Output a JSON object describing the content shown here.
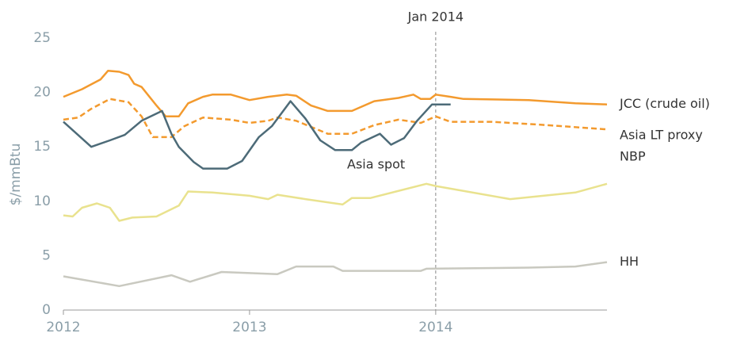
{
  "chart_data": {
    "type": "line",
    "ylabel": "$/mmBtu",
    "xlim": [
      2012,
      2014.92
    ],
    "xticks": [
      2012,
      2013,
      2014
    ],
    "ylim": [
      0,
      25
    ],
    "yticks": [
      0,
      5,
      10,
      15,
      20,
      25
    ],
    "annotations": [
      {
        "text": "Jan 2014",
        "x": 2014
      }
    ],
    "series": [
      {
        "name": "JCC (crude oil)",
        "color": "#f39a2e",
        "style": "solid",
        "x": [
          2012.0,
          2012.1,
          2012.2,
          2012.24,
          2012.3,
          2012.35,
          2012.38,
          2012.42,
          2012.5,
          2012.55,
          2012.62,
          2012.67,
          2012.75,
          2012.8,
          2012.9,
          2013.0,
          2013.1,
          2013.2,
          2013.25,
          2013.33,
          2013.42,
          2013.55,
          2013.67,
          2013.8,
          2013.88,
          2013.92,
          2013.97,
          2014.0,
          2014.08,
          2014.15,
          2014.5,
          2014.75,
          2014.92
        ],
        "values": [
          19.6,
          20.3,
          21.2,
          22.0,
          21.9,
          21.6,
          20.8,
          20.5,
          18.8,
          17.8,
          17.8,
          19.0,
          19.6,
          19.8,
          19.8,
          19.3,
          19.6,
          19.8,
          19.7,
          18.8,
          18.3,
          18.3,
          19.2,
          19.5,
          19.8,
          19.4,
          19.4,
          19.8,
          19.6,
          19.4,
          19.3,
          19.0,
          18.9
        ]
      },
      {
        "name": "Asia LT proxy",
        "color": "#f39a2e",
        "style": "dashed",
        "x": [
          2012.0,
          2012.08,
          2012.15,
          2012.25,
          2012.35,
          2012.42,
          2012.48,
          2012.58,
          2012.65,
          2012.75,
          2012.9,
          2013.0,
          2013.1,
          2013.15,
          2013.25,
          2013.35,
          2013.42,
          2013.55,
          2013.67,
          2013.8,
          2013.92,
          2014.0,
          2014.08,
          2014.3,
          2014.6,
          2014.92
        ],
        "values": [
          17.5,
          17.7,
          18.5,
          19.4,
          19.1,
          17.8,
          15.9,
          15.9,
          16.9,
          17.7,
          17.5,
          17.2,
          17.4,
          17.7,
          17.4,
          16.7,
          16.2,
          16.2,
          17.0,
          17.5,
          17.2,
          17.8,
          17.3,
          17.3,
          17.0,
          16.6
        ]
      },
      {
        "name": "Asia spot",
        "color": "#4d6b78",
        "style": "solid",
        "x": [
          2012.0,
          2012.15,
          2012.25,
          2012.33,
          2012.42,
          2012.53,
          2012.58,
          2012.62,
          2012.7,
          2012.75,
          2012.88,
          2012.96,
          2013.05,
          2013.12,
          2013.22,
          2013.3,
          2013.38,
          2013.46,
          2013.55,
          2013.6,
          2013.7,
          2013.76,
          2013.83,
          2013.9,
          2013.98,
          2014.08
        ],
        "values": [
          17.3,
          15.0,
          15.6,
          16.1,
          17.4,
          18.3,
          16.2,
          15.0,
          13.6,
          13.0,
          13.0,
          13.7,
          15.9,
          16.9,
          19.2,
          17.6,
          15.6,
          14.7,
          14.7,
          15.4,
          16.2,
          15.2,
          15.8,
          17.4,
          18.9,
          18.9
        ]
      },
      {
        "name": "NBP",
        "color": "#e9e28e",
        "style": "solid",
        "x": [
          2012.0,
          2012.05,
          2012.1,
          2012.18,
          2012.25,
          2012.3,
          2012.37,
          2012.5,
          2012.62,
          2012.67,
          2012.8,
          2013.0,
          2013.1,
          2013.15,
          2013.3,
          2013.5,
          2013.55,
          2013.65,
          2013.95,
          2014.0,
          2014.4,
          2014.75,
          2014.92
        ],
        "values": [
          8.7,
          8.6,
          9.4,
          9.8,
          9.4,
          8.2,
          8.5,
          8.6,
          9.6,
          10.9,
          10.8,
          10.5,
          10.2,
          10.6,
          10.2,
          9.7,
          10.3,
          10.3,
          11.6,
          11.4,
          10.2,
          10.8,
          11.6
        ]
      },
      {
        "name": "HH",
        "color": "#c9c9c0",
        "style": "solid",
        "x": [
          2012.0,
          2012.3,
          2012.58,
          2012.68,
          2012.85,
          2013.15,
          2013.25,
          2013.45,
          2013.5,
          2013.92,
          2013.95,
          2014.5,
          2014.75,
          2014.92
        ],
        "values": [
          3.1,
          2.2,
          3.2,
          2.6,
          3.5,
          3.3,
          4.0,
          4.0,
          3.6,
          3.6,
          3.8,
          3.9,
          4.0,
          4.4
        ]
      }
    ]
  }
}
